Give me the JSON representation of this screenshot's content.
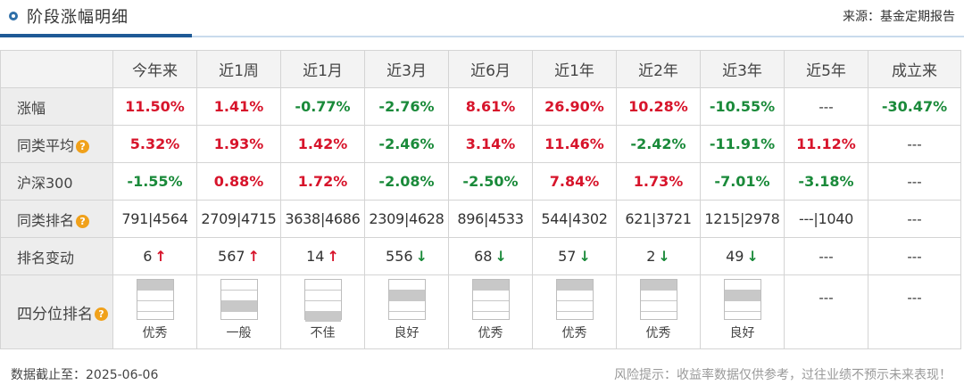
{
  "header": {
    "title": "阶段涨幅明细",
    "source": "来源：基金定期报告"
  },
  "columns": [
    "今年来",
    "近1周",
    "近1月",
    "近3月",
    "近6月",
    "近1年",
    "近2年",
    "近3年",
    "近5年",
    "成立来"
  ],
  "rows": {
    "zhangfu": {
      "label": "涨幅",
      "values": [
        "11.50%",
        "1.41%",
        "-0.77%",
        "-2.76%",
        "8.61%",
        "26.90%",
        "10.28%",
        "-10.55%",
        "---",
        "-30.47%"
      ]
    },
    "tonglei": {
      "label": "同类平均",
      "values": [
        "5.32%",
        "1.93%",
        "1.42%",
        "-2.46%",
        "3.14%",
        "11.46%",
        "-2.42%",
        "-11.91%",
        "11.12%",
        "---"
      ]
    },
    "hushen": {
      "label": "沪深300",
      "values": [
        "-1.55%",
        "0.88%",
        "1.72%",
        "-2.08%",
        "-2.50%",
        "7.84%",
        "1.73%",
        "-7.01%",
        "-3.18%",
        "---"
      ]
    },
    "paiming": {
      "label": "同类排名",
      "values": [
        "791|4564",
        "2709|4715",
        "3638|4686",
        "2309|4628",
        "896|4533",
        "544|4302",
        "621|3721",
        "1215|2978",
        "---|1040",
        "---"
      ]
    },
    "biandong": {
      "label": "排名变动",
      "values": [
        "6",
        "567",
        "14",
        "556",
        "68",
        "57",
        "2",
        "49",
        "---",
        "---"
      ],
      "arrows": [
        "↑",
        "↑",
        "↑",
        "↓",
        "↓",
        "↓",
        "↓",
        "↓",
        "",
        ""
      ],
      "dirs": [
        "up",
        "up",
        "up",
        "dn",
        "dn",
        "dn",
        "dn",
        "dn",
        "",
        ""
      ]
    },
    "sifenwei": {
      "label": "四分位排名",
      "labels": [
        "优秀",
        "一般",
        "不佳",
        "良好",
        "优秀",
        "优秀",
        "优秀",
        "良好",
        "---",
        "---"
      ],
      "filled": [
        0,
        2,
        3,
        1,
        0,
        0,
        0,
        1,
        -1,
        -1
      ]
    }
  },
  "help_glyph": "?",
  "colors": {
    "up": "#d7142b",
    "down": "#1a8a3a",
    "accent": "#1f5a96",
    "help": "#f0a11b"
  },
  "footer": {
    "date": "数据截止至：2025-06-06",
    "risk": "风险提示：收益率数据仅供参考，过往业绩不预示未来表现！"
  }
}
